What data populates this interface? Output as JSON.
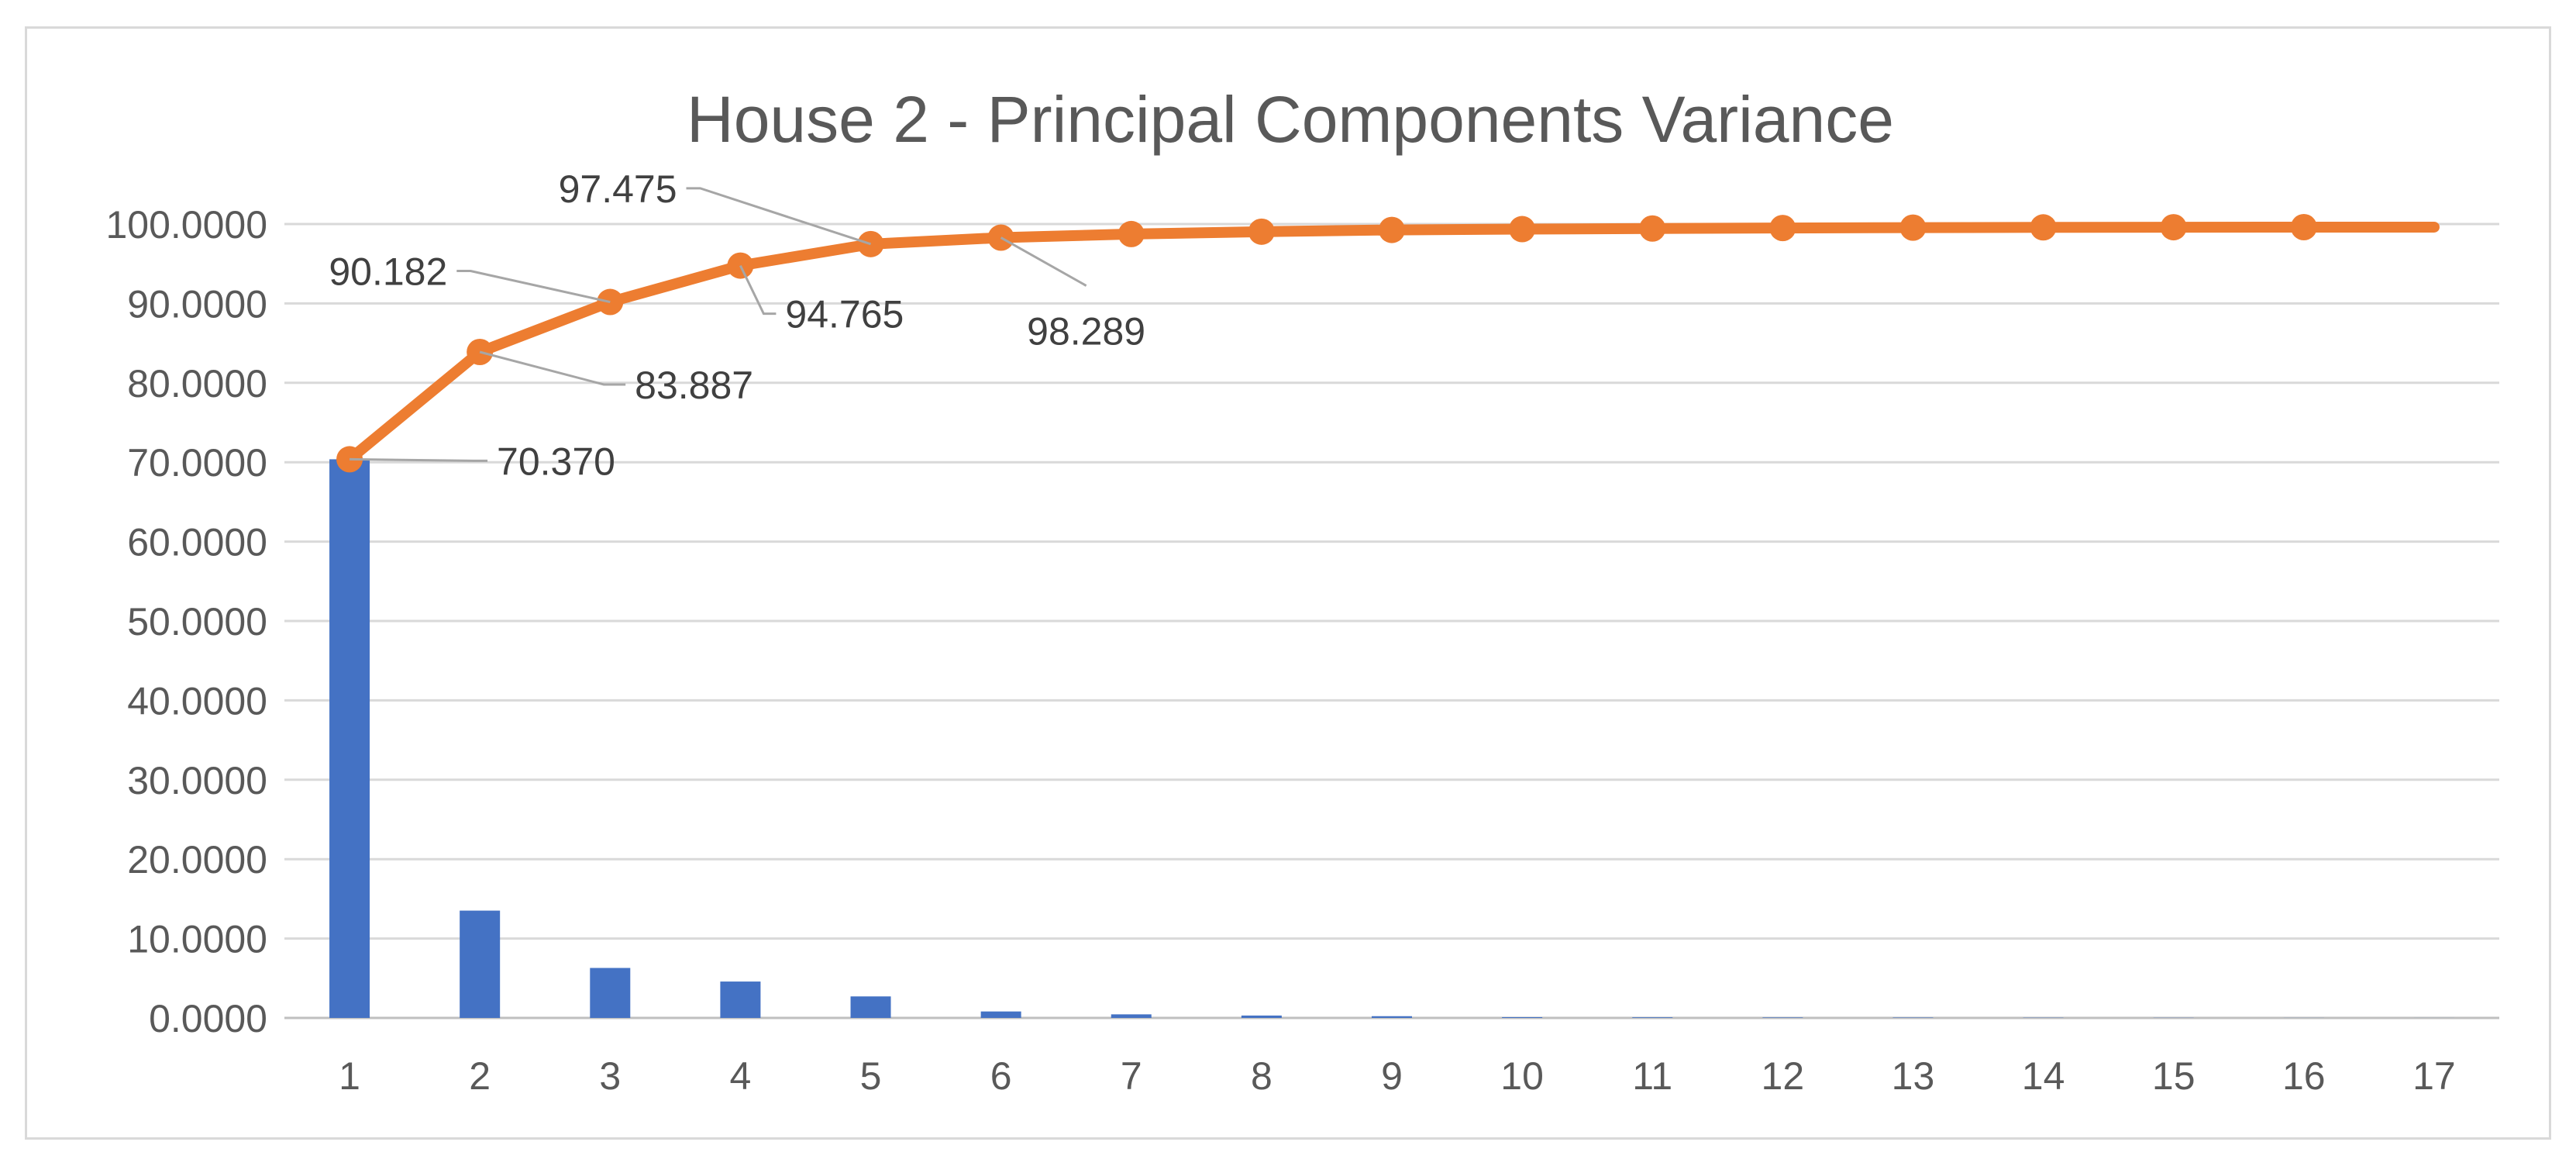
{
  "chart_data": {
    "type": "bar",
    "title": "House 2 - Principal Components Variance",
    "xlabel": "",
    "ylabel": "",
    "categories": [
      "1",
      "2",
      "3",
      "4",
      "5",
      "6",
      "7",
      "8",
      "9",
      "10",
      "11",
      "12",
      "13",
      "14",
      "15",
      "16",
      "17"
    ],
    "y_tick_labels": [
      "0.0000",
      "10.0000",
      "20.0000",
      "30.0000",
      "40.0000",
      "50.0000",
      "60.0000",
      "70.0000",
      "80.0000",
      "90.0000",
      "100.0000"
    ],
    "ylim": [
      0,
      100
    ],
    "grid": true,
    "legend": "none",
    "series": [
      {
        "type": "bar",
        "color": "#4472C4",
        "values": [
          70.37,
          13.517,
          6.295,
          4.583,
          2.71,
          0.814,
          0.45,
          0.3,
          0.22,
          0.1,
          0.08,
          0.06,
          0.05,
          0.03,
          0.02,
          0.01,
          0.005
        ]
      },
      {
        "type": "line",
        "color": "#ED7D31",
        "values": [
          70.37,
          83.887,
          90.182,
          94.765,
          97.475,
          98.289,
          98.74,
          99.04,
          99.26,
          99.36,
          99.44,
          99.5,
          99.55,
          99.58,
          99.6,
          99.61,
          99.615
        ]
      }
    ],
    "data_labels": [
      {
        "index": 0,
        "text": "70.370"
      },
      {
        "index": 1,
        "text": "83.887"
      },
      {
        "index": 2,
        "text": "90.182"
      },
      {
        "index": 3,
        "text": "94.765"
      },
      {
        "index": 4,
        "text": "97.475"
      },
      {
        "index": 5,
        "text": "98.289"
      }
    ],
    "colors": {
      "grid": "#d9d9d9",
      "axis": "#bfbfbf",
      "text": "#595959",
      "leader": "#a6a6a6"
    }
  }
}
